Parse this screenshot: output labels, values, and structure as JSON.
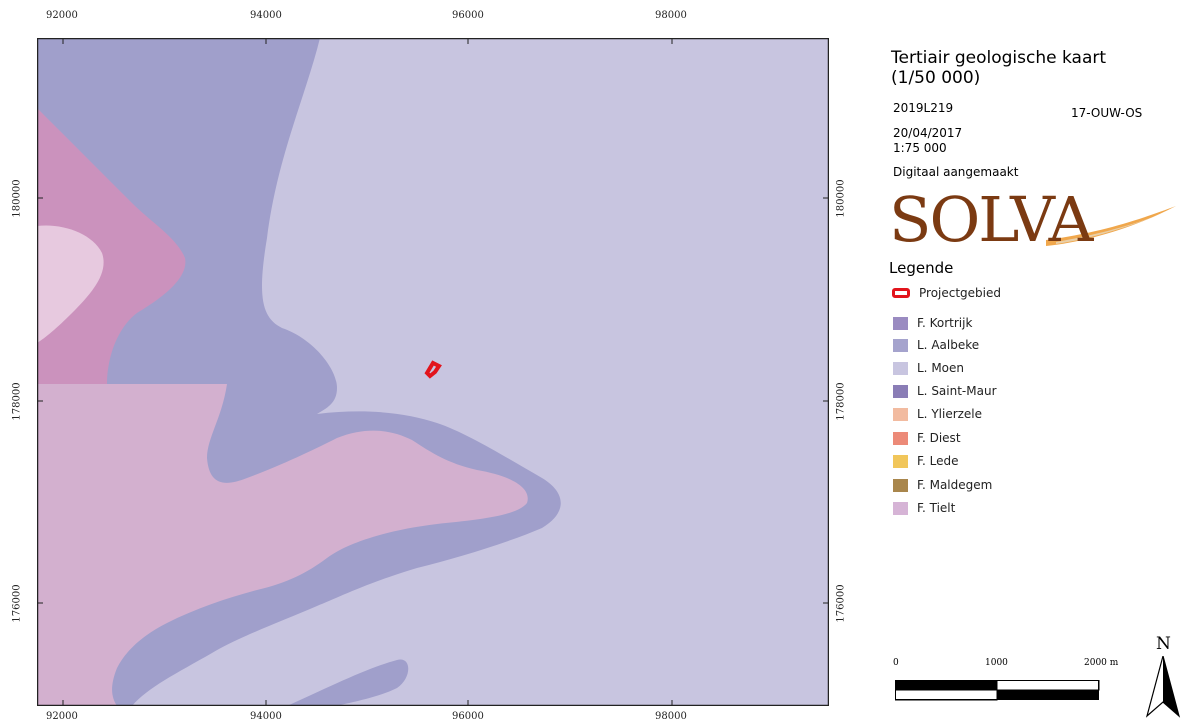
{
  "title": "Tertiair geologische kaart (1/50 000)",
  "title_line1": "Tertiair geologische kaart",
  "title_line2": "(1/50 000)",
  "map_id": "2019L219",
  "project_code": "17-OUW-OS",
  "date": "20/04/2017",
  "scale": "1:75 000",
  "note": "Digitaal aangemaakt",
  "logo_text": "SOLVA",
  "legend_heading": "Legende",
  "legend": [
    {
      "label": "Projectgebied",
      "color": "#e2141c",
      "type": "outline"
    },
    {
      "label": "F. Kortrijk",
      "color": "#9a8bc1",
      "type": "fill"
    },
    {
      "label": "L. Aalbeke",
      "color": "#a5a3cd",
      "type": "fill"
    },
    {
      "label": "L. Moen",
      "color": "#c8c5e0",
      "type": "fill"
    },
    {
      "label": "L. Saint-Maur",
      "color": "#8a7db6",
      "type": "fill"
    },
    {
      "label": "L. Ylierzele",
      "color": "#f2bba0",
      "type": "fill"
    },
    {
      "label": "F. Diest",
      "color": "#ec8a78",
      "type": "fill"
    },
    {
      "label": "F. Lede",
      "color": "#f1c65a",
      "type": "fill"
    },
    {
      "label": "F. Maldegem",
      "color": "#a9864c",
      "type": "fill"
    },
    {
      "label": "F. Tielt",
      "color": "#d6b4d6",
      "type": "fill"
    }
  ],
  "x_ticks": [
    "92000",
    "94000",
    "96000",
    "98000"
  ],
  "y_ticks": [
    "180000",
    "178000",
    "176000"
  ],
  "scalebar": {
    "labels": [
      "0",
      "1000",
      "2000 m"
    ]
  },
  "north_label": "N",
  "colors": {
    "moen": "#c8c5e0",
    "aalbeke": "#a09fcb",
    "tielt_dark": "#cb92bd",
    "tielt_light": "#d3b0cf",
    "tielt_pale": "#e7c9df",
    "project": "#e2141c",
    "logo": "#7b3a12"
  }
}
